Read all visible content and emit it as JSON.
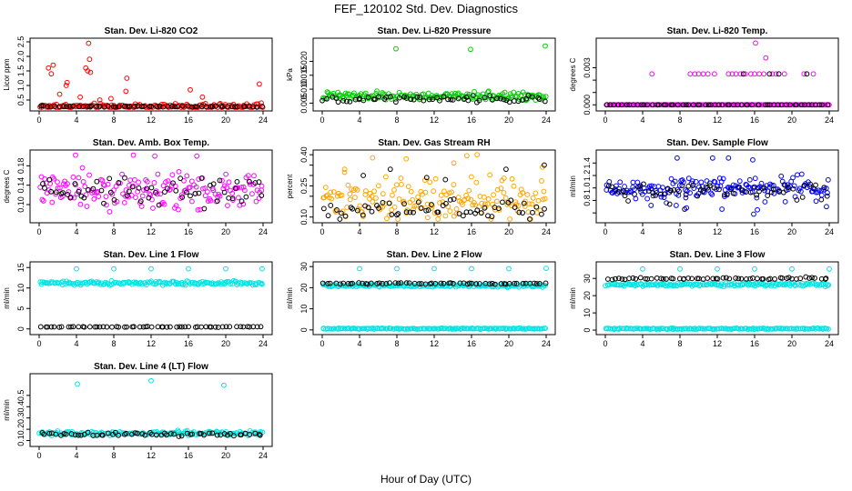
{
  "figure": {
    "title": "FEF_120102  Std. Dev. Diagnostics",
    "xlabel": "Hour of Day (UTC)"
  },
  "chart_data": [
    {
      "type": "scatter",
      "title": "Stan. Dev. Li-820 CO2",
      "ylabel": "Licor ppm",
      "xlim": [
        0,
        24
      ],
      "ylim": [
        0.25,
        2.5
      ],
      "xticks": [
        0,
        4,
        8,
        12,
        16,
        20,
        24
      ],
      "yticks": [
        0.5,
        1.0,
        1.5,
        2.0,
        2.5
      ],
      "ytick_labels": [
        "0.5",
        "1.0",
        "1.5",
        "2.0",
        "2.5"
      ],
      "series": [
        {
          "color": "#ff0000",
          "base": [
            0.28,
            0.06
          ],
          "outliers": [
            [
              5.3,
              2.45
            ],
            [
              5.0,
              1.6
            ],
            [
              5.2,
              1.5
            ],
            [
              5.4,
              1.9
            ],
            [
              1.3,
              1.4
            ],
            [
              1.0,
              1.6
            ],
            [
              1.5,
              1.7
            ],
            [
              3.0,
              1.1
            ],
            [
              2.9,
              1.0
            ],
            [
              5.5,
              1.45
            ],
            [
              9.4,
              1.25
            ],
            [
              9.3,
              0.8
            ],
            [
              23.6,
              1.05
            ],
            [
              16.2,
              0.85
            ],
            [
              2.2,
              0.7
            ],
            [
              17.5,
              0.6
            ],
            [
              4.4,
              0.6
            ],
            [
              6.5,
              0.5
            ],
            [
              7.7,
              0.55
            ]
          ]
        },
        {
          "color": "#000000",
          "base": [
            0.28,
            0.015
          ],
          "outliers": []
        }
      ]
    },
    {
      "type": "scatter",
      "title": "Stan. Dev. Li-820 Pressure",
      "ylabel": "kPa",
      "xlim": [
        0,
        24
      ],
      "ylim": [
        0.0035,
        0.027
      ],
      "xticks": [
        0,
        4,
        8,
        12,
        16,
        20,
        24
      ],
      "yticks": [
        0.005,
        0.01,
        0.015,
        0.02
      ],
      "ytick_labels": [
        "0.005",
        "0.010",
        "0.015",
        "0.020"
      ],
      "series": [
        {
          "color": "#00cc00",
          "base": [
            0.0075,
            0.0009
          ],
          "outliers": [
            [
              7.9,
              0.0245
            ],
            [
              15.9,
              0.0243
            ],
            [
              23.9,
              0.0255
            ]
          ]
        },
        {
          "color": "#000000",
          "base": [
            0.0065,
            0.0007
          ],
          "outliers": []
        }
      ]
    },
    {
      "type": "scatter",
      "title": "Stan. Dev. Li-820 Temp.",
      "ylabel": "degrees C",
      "xlim": [
        0,
        24
      ],
      "ylim": [
        -0.0002,
        0.0051
      ],
      "xticks": [
        0,
        4,
        8,
        12,
        16,
        20,
        24
      ],
      "yticks": [
        0.0,
        0.001,
        0.002,
        0.003
      ],
      "ytick_labels": [
        "0.000",
        "",
        "",
        "0.003"
      ],
      "series": [
        {
          "color": "#ff00ff",
          "base": [
            0.0,
            0.0
          ],
          "outliers": [
            [
              5.0,
              0.0025
            ],
            [
              9.1,
              0.0025
            ],
            [
              9.6,
              0.0025
            ],
            [
              10.0,
              0.0025
            ],
            [
              10.5,
              0.0025
            ],
            [
              11.0,
              0.0025
            ],
            [
              11.7,
              0.0025
            ],
            [
              13.2,
              0.0025
            ],
            [
              13.6,
              0.0025
            ],
            [
              14.0,
              0.0025
            ],
            [
              14.5,
              0.0025
            ],
            [
              15.0,
              0.0025
            ],
            [
              15.6,
              0.0025
            ],
            [
              16.0,
              0.0025
            ],
            [
              16.5,
              0.0025
            ],
            [
              17.0,
              0.0025
            ],
            [
              17.9,
              0.0025
            ],
            [
              18.3,
              0.0025
            ],
            [
              19.2,
              0.0025
            ],
            [
              21.3,
              0.0025
            ],
            [
              22.3,
              0.0025
            ],
            [
              16.1,
              0.005
            ],
            [
              17.2,
              0.0038
            ]
          ]
        },
        {
          "color": "#000000",
          "base": [
            0.0,
            0.0
          ],
          "outliers": [
            [
              14.8,
              0.0025
            ],
            [
              17.6,
              0.0025
            ],
            [
              18.6,
              0.0025
            ],
            [
              21.6,
              0.0025
            ]
          ]
        }
      ]
    },
    {
      "type": "scatter",
      "title": "Stan. Dev. Amb. Box Temp.",
      "ylabel": "degrees C",
      "xlim": [
        0,
        24
      ],
      "ylim": [
        0.07,
        0.205
      ],
      "xticks": [
        0,
        4,
        8,
        12,
        16,
        20,
        24
      ],
      "yticks": [
        0.1,
        0.14,
        0.18
      ],
      "ytick_labels": [
        "0.10",
        "0.14",
        "0.18"
      ],
      "series": [
        {
          "color": "#ff00ff",
          "base": [
            0.128,
            0.022
          ],
          "outliers": [
            [
              3.9,
              0.202
            ],
            [
              10.1,
              0.202
            ],
            [
              12.4,
              0.2
            ],
            [
              16.9,
              0.2
            ]
          ]
        },
        {
          "color": "#000000",
          "base": [
            0.125,
            0.02
          ],
          "outliers": []
        }
      ]
    },
    {
      "type": "scatter",
      "title": "Stan. Dev. Gas Stream RH",
      "ylabel": "percent",
      "xlim": [
        0,
        24
      ],
      "ylim": [
        0.09,
        0.405
      ],
      "xticks": [
        0,
        4,
        8,
        12,
        16,
        20,
        24
      ],
      "yticks": [
        0.1,
        0.15,
        0.2,
        0.25,
        0.3,
        0.35,
        0.4
      ],
      "ytick_labels": [
        "0.10",
        "",
        "",
        "0.25",
        "",
        "",
        "0.40"
      ],
      "series": [
        {
          "color": "#ffa500",
          "base": [
            0.19,
            0.065
          ],
          "outliers": [
            [
              5.4,
              0.385
            ],
            [
              9.0,
              0.38
            ],
            [
              15.5,
              0.395
            ],
            [
              16.6,
              0.4
            ],
            [
              14.1,
              0.36
            ],
            [
              2.4,
              0.33
            ],
            [
              23.6,
              0.34
            ]
          ]
        },
        {
          "color": "#000000",
          "base": [
            0.135,
            0.03
          ],
          "outliers": [
            [
              23.8,
              0.35
            ],
            [
              19.7,
              0.33
            ],
            [
              7.3,
              0.33
            ],
            [
              4.4,
              0.3
            ],
            [
              11.2,
              0.29
            ],
            [
              13.2,
              0.28
            ]
          ]
        }
      ]
    },
    {
      "type": "scatter",
      "title": "Stan. Dev. Sample Flow",
      "ylabel": "ml/min",
      "xlim": [
        0,
        24
      ],
      "ylim": [
        0.5,
        1.55
      ],
      "xticks": [
        0,
        4,
        8,
        12,
        16,
        20,
        24
      ],
      "yticks": [
        0.6,
        0.8,
        1.0,
        1.2,
        1.4
      ],
      "ytick_labels": [
        "",
        "0.8",
        "1.0",
        "1.2",
        "1.4"
      ],
      "series": [
        {
          "color": "#0000ff",
          "base": [
            1.0,
            0.12
          ],
          "outliers": [
            [
              7.7,
              1.48
            ],
            [
              11.5,
              1.48
            ],
            [
              13.2,
              1.48
            ],
            [
              15.8,
              1.45
            ],
            [
              8.7,
              0.68
            ],
            [
              12.5,
              0.66
            ],
            [
              15.9,
              0.58
            ],
            [
              16.3,
              0.65
            ],
            [
              7.6,
              0.72
            ],
            [
              23.7,
              0.7
            ],
            [
              4.9,
              0.72
            ]
          ]
        },
        {
          "color": "#000000",
          "base": [
            0.95,
            0.08
          ],
          "outliers": [
            [
              8.5,
              0.66
            ],
            [
              6.9,
              0.74
            ]
          ]
        }
      ]
    },
    {
      "type": "scatter",
      "title": "Stan. Dev. Line 1 Flow",
      "ylabel": "ml/min",
      "xlim": [
        0,
        24
      ],
      "ylim": [
        -0.5,
        15.5
      ],
      "xticks": [
        0,
        4,
        8,
        12,
        16,
        20,
        24
      ],
      "yticks": [
        0,
        5,
        10,
        15
      ],
      "ytick_labels": [
        "0",
        "5",
        "10",
        "15"
      ],
      "series": [
        {
          "color": "#00e5e5",
          "base": [
            11.2,
            0.3
          ],
          "outliers": [
            [
              4.0,
              14.7
            ],
            [
              8.0,
              14.7
            ],
            [
              12.0,
              14.7
            ],
            [
              16.0,
              14.7
            ],
            [
              20.0,
              14.7
            ],
            [
              23.9,
              14.7
            ]
          ]
        },
        {
          "color": "#000000",
          "base": [
            0.5,
            0.05
          ],
          "outliers": []
        }
      ]
    },
    {
      "type": "scatter",
      "title": "Stan. Dev. Line 2 Flow",
      "ylabel": "ml/min",
      "xlim": [
        0,
        24
      ],
      "ylim": [
        -0.5,
        30.5
      ],
      "xticks": [
        0,
        4,
        8,
        12,
        16,
        20,
        24
      ],
      "yticks": [
        0,
        10,
        20,
        30
      ],
      "ytick_labels": [
        "0",
        "10",
        "20",
        "30"
      ],
      "series": [
        {
          "color": "#00e5e5",
          "base": [
            21.0,
            0.5
          ],
          "outliers": [
            [
              4.0,
              29.0
            ],
            [
              8.0,
              29.0
            ],
            [
              12.0,
              29.0
            ],
            [
              16.0,
              29.0
            ],
            [
              20.0,
              29.0
            ],
            [
              24.0,
              29.2
            ]
          ]
        },
        {
          "color": "#00e5e5",
          "base": [
            0.6,
            0.15
          ],
          "outliers": []
        },
        {
          "color": "#000000",
          "base": [
            22.0,
            0.2
          ],
          "outliers": []
        }
      ]
    },
    {
      "type": "scatter",
      "title": "Stan. Dev. Line 3 Flow",
      "ylabel": "ml/min",
      "xlim": [
        0,
        24
      ],
      "ylim": [
        -0.5,
        37.5
      ],
      "xticks": [
        0,
        4,
        8,
        12,
        16,
        20,
        24
      ],
      "yticks": [
        0,
        10,
        20,
        30
      ],
      "ytick_labels": [
        "0",
        "10",
        "20",
        "30"
      ],
      "series": [
        {
          "color": "#00e5e5",
          "base": [
            26.5,
            0.6
          ],
          "outliers": [
            [
              4.0,
              35.5
            ],
            [
              8.0,
              35.5
            ],
            [
              12.0,
              35.5
            ],
            [
              16.0,
              35.5
            ],
            [
              20.0,
              35.5
            ],
            [
              24.0,
              35.5
            ]
          ]
        },
        {
          "color": "#00e5e5",
          "base": [
            0.8,
            0.2
          ],
          "outliers": []
        },
        {
          "color": "#000000",
          "base": [
            30.0,
            0.4
          ],
          "outliers": []
        }
      ]
    },
    {
      "type": "scatter",
      "title": "Stan. Dev. Line 4 (LT) Flow",
      "ylabel": "ml/min",
      "xlim": [
        0,
        24
      ],
      "ylim": [
        0.08,
        0.66
      ],
      "xticks": [
        0,
        4,
        8,
        12,
        16,
        20,
        24
      ],
      "yticks": [
        0.1,
        0.2,
        0.3,
        0.4,
        0.5
      ],
      "ytick_labels": [
        "0.1",
        "0.2",
        "0.3",
        "0.4",
        "0.5"
      ],
      "series": [
        {
          "color": "#00e5e5",
          "base": [
            0.165,
            0.012
          ],
          "outliers": [
            [
              4.1,
              0.6
            ],
            [
              12.0,
              0.63
            ],
            [
              19.8,
              0.59
            ]
          ]
        },
        {
          "color": "#000000",
          "base": [
            0.155,
            0.01
          ],
          "outliers": []
        }
      ]
    }
  ]
}
